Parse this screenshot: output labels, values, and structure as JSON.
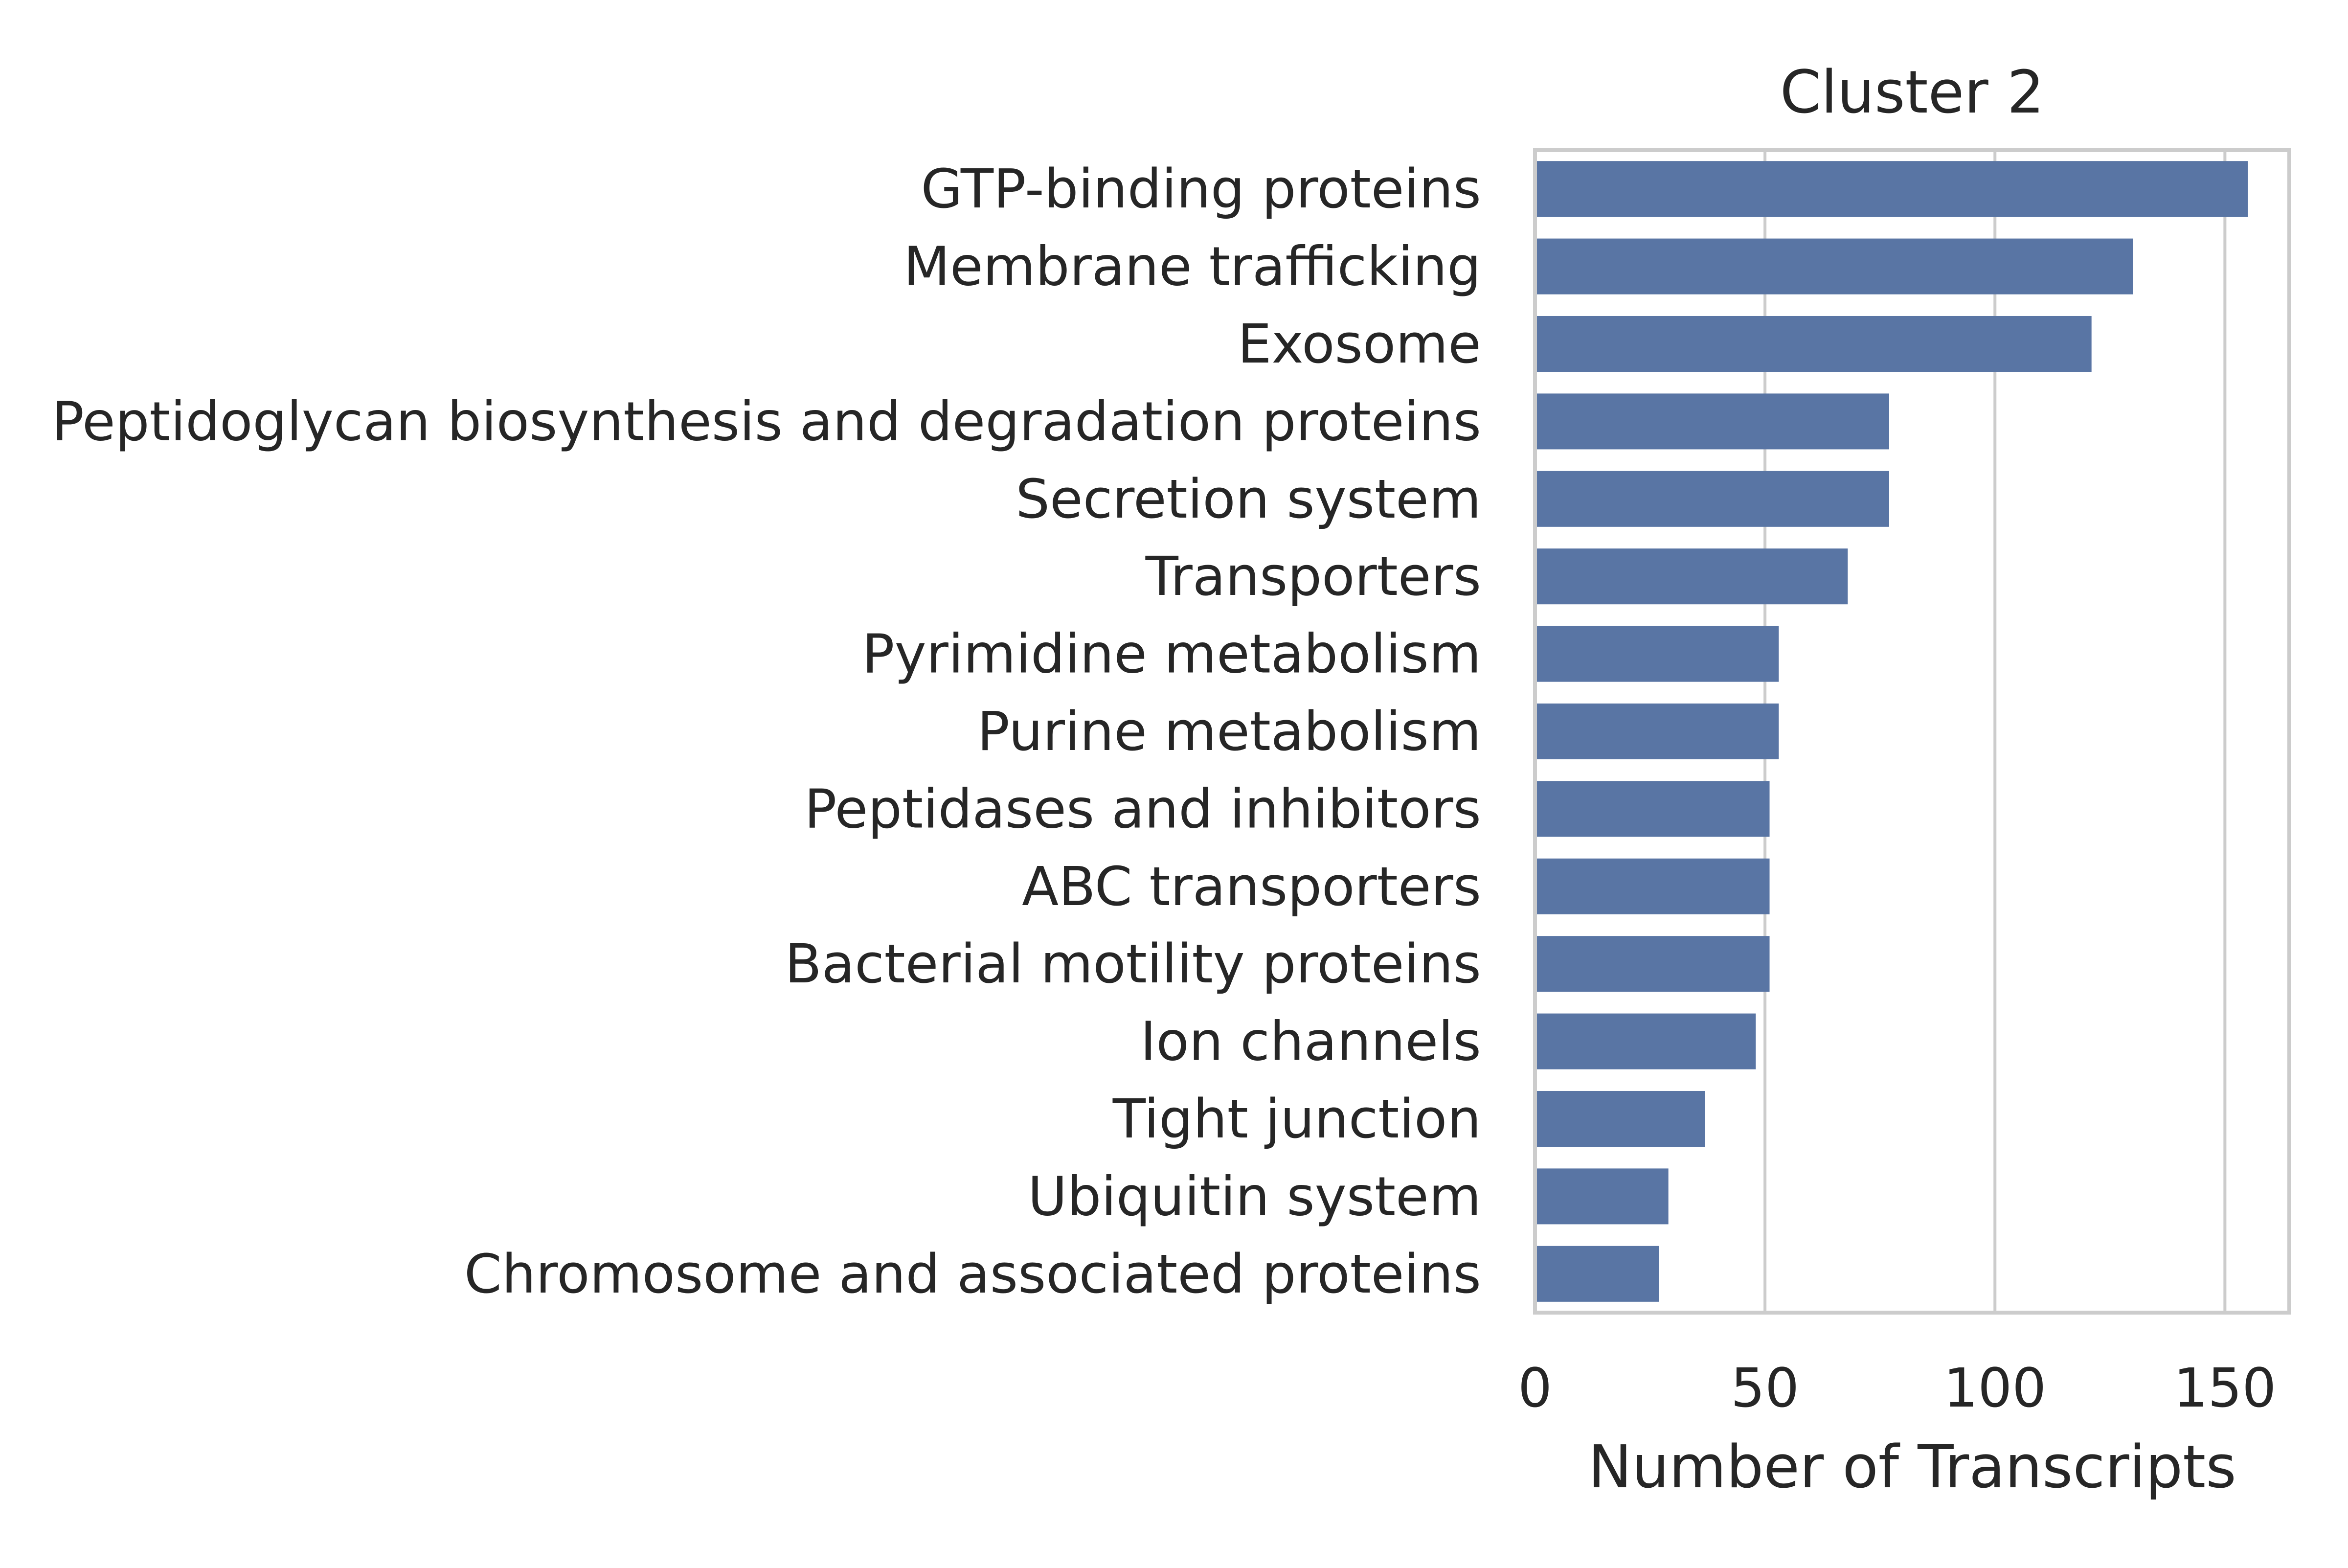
{
  "chart_data": {
    "type": "bar",
    "orientation": "horizontal",
    "title": "Cluster 2",
    "xlabel": "Number of Transcripts",
    "ylabel": "",
    "categories": [
      "GTP-binding proteins",
      "Membrane trafficking",
      "Exosome",
      "Peptidoglycan biosynthesis and degradation proteins",
      "Secretion system",
      "Transporters",
      "Pyrimidine metabolism",
      "Purine metabolism",
      "Peptidases and inhibitors",
      "ABC transporters",
      "Bacterial motility proteins",
      "Ion channels",
      "Tight junction",
      "Ubiquitin system",
      "Chromosome and associated proteins"
    ],
    "values": [
      155,
      130,
      121,
      77,
      77,
      68,
      53,
      53,
      51,
      51,
      51,
      48,
      37,
      29,
      27
    ],
    "xlim": [
      0,
      164
    ],
    "xticks": [
      0,
      50,
      100,
      150
    ],
    "xtick_labels": [
      "0",
      "50",
      "100",
      "150"
    ],
    "grid": "x",
    "bar_color": "#5975a4",
    "grid_color": "#cccccc",
    "spine_color": "#cccccc"
  }
}
